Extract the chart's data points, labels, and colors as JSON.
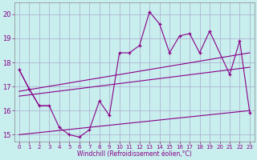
{
  "background_color": "#c8eeed",
  "grid_color": "#aaaacc",
  "line_color": "#880088",
  "xlabel": "Windchill (Refroidissement éolien,°C)",
  "xlabel_color": "#880088",
  "ylabel_color": "#880088",
  "xlim": [
    -0.5,
    23.5
  ],
  "ylim": [
    14.7,
    20.5
  ],
  "yticks": [
    15,
    16,
    17,
    18,
    19,
    20
  ],
  "xticks": [
    0,
    1,
    2,
    3,
    4,
    5,
    6,
    7,
    8,
    9,
    10,
    11,
    12,
    13,
    14,
    15,
    16,
    17,
    18,
    19,
    20,
    21,
    22,
    23
  ],
  "spiky_series_x": [
    0,
    1,
    2,
    3,
    4,
    5,
    6,
    7,
    8,
    9,
    10,
    11,
    12,
    13,
    14,
    15,
    16,
    17,
    18,
    19,
    21,
    22,
    23
  ],
  "spiky_series_y": [
    17.7,
    16.9,
    16.2,
    16.2,
    15.3,
    15.0,
    14.9,
    15.2,
    16.4,
    15.8,
    18.4,
    18.4,
    18.7,
    20.1,
    19.6,
    18.4,
    19.1,
    19.2,
    18.4,
    19.3,
    17.5,
    18.9,
    15.9
  ],
  "trend_line1_x": [
    0,
    23
  ],
  "trend_line1_y": [
    16.8,
    18.4
  ],
  "trend_line2_x": [
    0,
    23
  ],
  "trend_line2_y": [
    16.6,
    17.8
  ],
  "trend_line3_x": [
    0,
    23
  ],
  "trend_line3_y": [
    15.0,
    16.0
  ],
  "short_line1_x": [
    0,
    1,
    2,
    3
  ],
  "short_line1_y": [
    17.7,
    16.9,
    16.2,
    16.2
  ]
}
